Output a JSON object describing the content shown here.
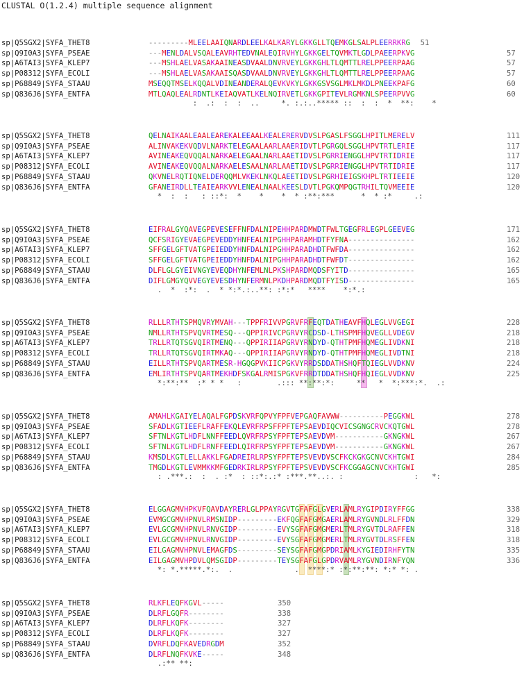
{
  "title": "CLUSTAL O(1.2.4) multiple sequence alignment",
  "blocks": [
    {
      "rows": [
        {
          "name": "sp|Q5SGX2|SYFA_THET8",
          "seq": "---------MLEELAAIQNARDLEELKALKARYLGKKGLLTQEMKGLSALPLEERRKRG",
          "num": "51"
        },
        {
          "name": "sp|Q9I0A3|SYFA_PSEAE",
          "seq": "---MENLDALVSQALEAVRHTEDVNALEQIRVHYLGKKGELTQVMKTLGDLPAEERPKVG",
          "num": "57"
        },
        {
          "name": "sp|A6TAI3|SYFA_KLEP7",
          "seq": "---MSHLAELVASAKAAINEASDVAALDNVRVEYLGKKGHLTLQMTTLRELPPEERPAAG",
          "num": "57"
        },
        {
          "name": "sp|P08312|SYFA_ECOLI",
          "seq": "---MSHLAELVASAKAAISQASDVAALDNVRVEYLGKKGHLTLQMTTLRELPPEERPAAG",
          "num": "57"
        },
        {
          "name": "sp|P68849|SYFA_STAAU",
          "seq": "MSEQQTMSELKQQALVDINEANDERALQEVKVKYLGKKGSVSGLMKLMKDLPNEEKPAFG",
          "num": "60"
        },
        {
          "name": "sp|Q836J6|SYFA_ENTFA",
          "seq": "MTLQAQLEALRDNTLKEIAQVATLKELNQIRVETLGKKGPITEVLRGMKNLSPEERPVVG",
          "num": "60"
        }
      ],
      "cons": "          :  .:  :  :  ..     *. :.:..***** ::  :  :  *  **:    *"
    },
    {
      "rows": [
        {
          "name": "sp|Q5SGX2|SYFA_THET8",
          "seq": "QELNAIKAALEAALEAREKALEEAALKEALERERVDVSLPGASLFSGGLHPITLMERELV",
          "num": "111"
        },
        {
          "name": "sp|Q9I0A3|SYFA_PSEAE",
          "seq": "ALINVAKEKVQDVLNARKTELEGAALAARLAAERIDVTLPGRGQLSGGLHPVTRTLERIE",
          "num": "117"
        },
        {
          "name": "sp|A6TAI3|SYFA_KLEP7",
          "seq": "AVINEAKEQVQQALNARKAELEGAALNARLAAETIDVSLPGRRIENGGLHPVTRTIDRIE",
          "num": "117"
        },
        {
          "name": "sp|P08312|SYFA_ECOLI",
          "seq": "AVINEAKEQVQQALNARKAELESAALNARLAAETIDVSLPGRRIENGGLHPVTRTIDRIE",
          "num": "117"
        },
        {
          "name": "sp|P68849|SYFA_STAAU",
          "seq": "QKVNELRQTIQNELDERQQMLVKEKLNKQLAEETIDVSLPGRHIEIGSKHPLTRTIEEIE",
          "num": "120"
        },
        {
          "name": "sp|Q836J6|SYFA_ENTFA",
          "seq": "GFANEIRDLLTEAIEARKVVLENEALNAALKEESLDVTLPGKQMPQGTRHILTQVMEEIE",
          "num": "120"
        }
      ],
      "cons": "  *  :  :   : ::*:  *    *    *  * :**:***      *  * :*     .:"
    },
    {
      "rows": [
        {
          "name": "sp|Q5SGX2|SYFA_THET8",
          "seq": "EIFRALGYQAVEGPEVESEFFNFDALNIPEHHPARDMWDTFWLTGEGFRLEGPLGEEVEG",
          "num": "171"
        },
        {
          "name": "sp|Q9I0A3|SYFA_PSEAE",
          "seq": "QCFSRIGYEVAEGPEVEDDYHNFEALNIPGHHPARAMHDTFYFNA---------------",
          "num": "162"
        },
        {
          "name": "sp|A6TAI3|SYFA_KLEP7",
          "seq": "SFFGELGFTVATGPEIEDDYHNFDALNIPGHHPARADHDTFWFDA---------------",
          "num": "162"
        },
        {
          "name": "sp|P08312|SYFA_ECOLI",
          "seq": "SFFGELGFTVATGPEIEDDYHNFDALNIPGHHPARADHDTFWFDT---------------",
          "num": "162"
        },
        {
          "name": "sp|P68849|SYFA_STAAU",
          "seq": "DLFLGLGYEIVNGYEVEQDHYNFEMLNLPKSHPARDMQDSFYITD---------------",
          "num": "165"
        },
        {
          "name": "sp|Q836J6|SYFA_ENTFA",
          "seq": "DIFLGMGYQVVEGYEVESDHYNFERMNLPKDHPARDMQDTFYISD---------------",
          "num": "165"
        }
      ],
      "cons": "  .  *  :*:  .  * *:*.:..**: :*:*   ****    *:*.:"
    },
    {
      "rows": [
        {
          "name": "sp|Q5SGX2|SYFA_THET8",
          "seq": "RLLLRTHTSPMQVRYMVAH---TPPFRIVVPGRVFRFEQTDATHEAVFHQLEGLVVGEGI",
          "num": "228"
        },
        {
          "name": "sp|Q9I0A3|SYFA_PSEAE",
          "seq": "NMLLRTHTSPVQVRTMESQ---QPPIRIVCPGRVYRCDSD-LTHSPMFHQVEGLLVDEGV",
          "num": "218"
        },
        {
          "name": "sp|A6TAI3|SYFA_KLEP7",
          "seq": "TRLLRTQTSGVQIRTMENQ---QPPIRIIAPGRVYRNDYD-QTHTPMFHQMEGLIVDKNI",
          "num": "218"
        },
        {
          "name": "sp|P08312|SYFA_ECOLI",
          "seq": "TRLLRTQTSGVQIRTMKAQ---QPPIRIIAPGRVYRNDYD-QTHTPMFHQMEGLIVDTNI",
          "num": "218"
        },
        {
          "name": "sp|P68849|SYFA_STAAU",
          "seq": "EILLRTHTSPVQARTMESR-HGQGPVKIICPGKVYRRDSDDATHSHQFTQIEGLVVDKNV",
          "num": "224"
        },
        {
          "name": "sp|Q836J6|SYFA_ENTFA",
          "seq": "EMLIRTHTSPVQARTMEKHDFSKGALRMISPGKVFRRDTDDATHSHQFHQIEGLVVDKNV",
          "num": "225"
        }
      ],
      "cons": "  *:**:**  :* * *   :        .::: **:**:*:     **   *  *:***:*.  .:"
    },
    {
      "rows": [
        {
          "name": "sp|Q5SGX2|SYFA_THET8",
          "seq": "AMAHLKGAIYELAQALFGPDSKVRFQPVYFPFVEPGAQFAVWW----------PEGGKWL",
          "num": "278"
        },
        {
          "name": "sp|Q9I0A3|SYFA_PSEAE",
          "seq": "SFADLKGTIEEFLRAFFEKQLEVRFRPSFFPFTEPSAEVDIQCVICSGNGCRVCKQTGWL",
          "num": "278"
        },
        {
          "name": "sp|A6TAI3|SYFA_KLEP7",
          "seq": "SFTNLKGTLHDFLNNFFEEDLQVRFRPSYFPFTEPSAEVDVM-----------GKNGKWL",
          "num": "267"
        },
        {
          "name": "sp|P08312|SYFA_ECOLI",
          "seq": "SFTNLKGTLHDFLRNFFEEDLQIRFRPSYFPFTEPSAEVDVM-----------GKNGKWL",
          "num": "267"
        },
        {
          "name": "sp|P68849|SYFA_STAAU",
          "seq": "KMSDLKGTLELLAKKLFGADREIRLRPSYFPFTEPSVEVDVSCFKCKGKGCNVCKHTGWI",
          "num": "284"
        },
        {
          "name": "sp|Q836J6|SYFA_ENTFA",
          "seq": "TMGDLKGTLEVMMKKMFGEDRKIRLRPSYFPFTEPSVEVDVSCFKCGGAGCNVCKHTGWI",
          "num": "285"
        }
      ],
      "cons": "  : .***.:  :  . :*  : ::*:.:* :***.**..:. :                :   *:"
    },
    {
      "rows": [
        {
          "name": "sp|Q5SGX2|SYFA_THET8",
          "seq": "ELGGAGMVHPKVFQAVDAYRERLGLPPAYRGVTGFAFGLGVERLAMLRYGIPDIRYFFGG",
          "num": "338"
        },
        {
          "name": "sp|Q9I0A3|SYFA_PSEAE",
          "seq": "EVMGCGMVHPNVLRMSNIDP---------EKFQGFAFGMGAERLAMLRYGVNDLRLFFDN",
          "num": "329"
        },
        {
          "name": "sp|A6TAI3|SYFA_KLEP7",
          "seq": "EVLGCGMVHPNVLRNVGIDP---------EVYSGFAFGMGMERLTMLRYGVTDLRAFFEN",
          "num": "318"
        },
        {
          "name": "sp|P08312|SYFA_ECOLI",
          "seq": "EVLGCGMVHPNVLRNVGIDP---------EVYSGFAFGMGMERLTMLRYGVTDLRSFFEN",
          "num": "318"
        },
        {
          "name": "sp|P68849|SYFA_STAAU",
          "seq": "EILGAGMVHPNVLEMAGFDS---------SEYSGFAFGMGPDRIAMLKYGIEDIRHFYTN",
          "num": "335"
        },
        {
          "name": "sp|Q836J6|SYFA_ENTFA",
          "seq": "EILGAGMVHPDVLQMSGIDP---------TEYSGFAFGLGPDRVAMLRYGVNDIRNFYQN",
          "num": "336"
        }
      ],
      "cons": "  *: *.*****.*:.  .              .  ****:* :*:**:**: *:* *: ."
    },
    {
      "rows": [
        {
          "name": "sp|Q5SGX2|SYFA_THET8",
          "seq": "RLKFLEQFKGVL-----",
          "num": "350"
        },
        {
          "name": "sp|Q9I0A3|SYFA_PSEAE",
          "seq": "DLRFLGQFR--------",
          "num": "338"
        },
        {
          "name": "sp|A6TAI3|SYFA_KLEP7",
          "seq": "DLRFLKQFK--------",
          "num": "327"
        },
        {
          "name": "sp|P08312|SYFA_ECOLI",
          "seq": "DLRFLKQFK--------",
          "num": "327"
        },
        {
          "name": "sp|P68849|SYFA_STAAU",
          "seq": "DVRFLDQFKAVEDRGDM",
          "num": "352"
        },
        {
          "name": "sp|Q836J6|SYFA_ENTFA",
          "seq": "DLRFLNQFKVKE-----",
          "num": "348"
        }
      ],
      "cons": "  .:** **:"
    }
  ],
  "colors": {
    "acidic": "#2020e0",
    "basic": "#d018d0",
    "hydrophobic": "#e0102a",
    "polar": "#18a018",
    "gap": "#888888",
    "highlight_green": "#9cc985",
    "highlight_pink": "#f07de0",
    "highlight_yellow": "#f7d98a"
  }
}
